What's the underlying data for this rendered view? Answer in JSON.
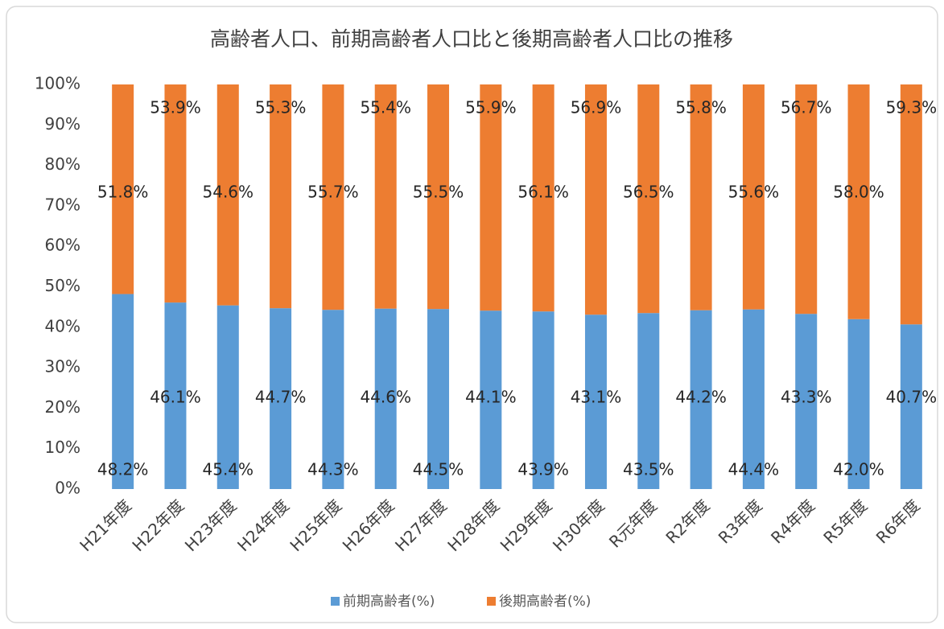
{
  "chart_data": {
    "type": "bar",
    "stacked": true,
    "title": "高齢者人口、前期高齢者人口比と後期高齢者人口比の推移",
    "categories": [
      "H21年度",
      "H22年度",
      "H23年度",
      "H24年度",
      "H25年度",
      "H26年度",
      "H27年度",
      "H28年度",
      "H29年度",
      "H30年度",
      "R元年度",
      "R2年度",
      "R3年度",
      "R4年度",
      "R5年度",
      "R6年度"
    ],
    "series": [
      {
        "name": "前期高齢者(%)",
        "color": "#5b9bd5",
        "values": [
          48.2,
          46.1,
          45.4,
          44.7,
          44.3,
          44.6,
          44.5,
          44.1,
          43.9,
          43.1,
          43.5,
          44.2,
          44.4,
          43.3,
          42.0,
          40.7
        ],
        "value_labels": [
          "48.2%",
          "46.1%",
          "45.4%",
          "44.7%",
          "44.3%",
          "44.6%",
          "44.5%",
          "44.1%",
          "43.9%",
          "43.1%",
          "43.5%",
          "44.2%",
          "44.4%",
          "43.3%",
          "42.0%",
          "40.7%"
        ]
      },
      {
        "name": "後期高齢者(%)",
        "color": "#ed7d31",
        "values": [
          51.8,
          53.9,
          54.6,
          55.3,
          55.7,
          55.4,
          55.5,
          55.9,
          56.1,
          56.9,
          56.5,
          55.8,
          55.6,
          56.7,
          58.0,
          59.3
        ],
        "value_labels": [
          "51.8%",
          "53.9%",
          "54.6%",
          "55.3%",
          "55.7%",
          "55.4%",
          "55.5%",
          "55.9%",
          "56.1%",
          "56.9%",
          "56.5%",
          "55.8%",
          "55.6%",
          "56.7%",
          "58.0%",
          "59.3%"
        ]
      }
    ],
    "ylim": [
      0,
      100
    ],
    "yticks": [
      {
        "value": 0,
        "label": "0%"
      },
      {
        "value": 10,
        "label": "10%"
      },
      {
        "value": 20,
        "label": "20%"
      },
      {
        "value": 30,
        "label": "30%"
      },
      {
        "value": 40,
        "label": "40%"
      },
      {
        "value": 50,
        "label": "50%"
      },
      {
        "value": 60,
        "label": "60%"
      },
      {
        "value": 70,
        "label": "70%"
      },
      {
        "value": 80,
        "label": "80%"
      },
      {
        "value": 90,
        "label": "90%"
      },
      {
        "value": 100,
        "label": "100%"
      }
    ],
    "legend": "bottom"
  }
}
